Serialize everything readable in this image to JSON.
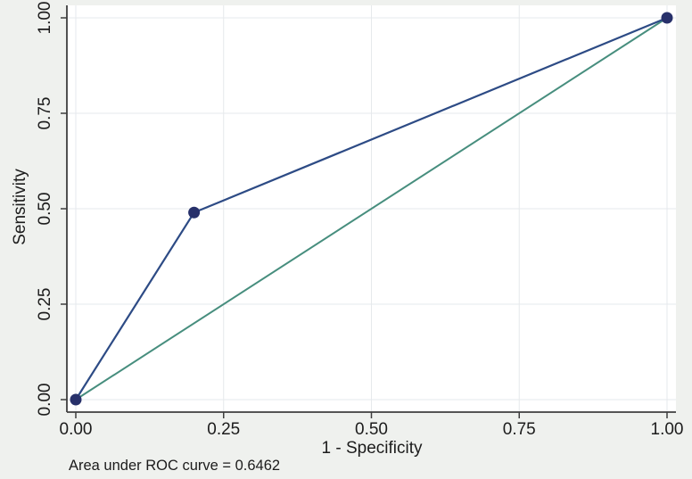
{
  "figure": {
    "background_color": "#eff1ee",
    "plot_background_color": "#ffffff",
    "axis_color": "#3e3e3e",
    "grid_color": "#e6e9ec",
    "text_color": "#1c1c1c"
  },
  "chart_data": {
    "type": "line",
    "subtype": "roc-curve",
    "title": "",
    "xlabel": "1 - Specificity",
    "ylabel": "Sensitivity",
    "xlim": [
      0,
      1
    ],
    "ylim": [
      0,
      1
    ],
    "grid": true,
    "legend_position": "none",
    "xticks": {
      "values": [
        0,
        0.25,
        0.5,
        0.75,
        1
      ],
      "labels": [
        "0.00",
        "0.25",
        "0.50",
        "0.75",
        "1.00"
      ]
    },
    "yticks": {
      "values": [
        0,
        0.25,
        0.5,
        0.75,
        1
      ],
      "labels": [
        "0.00",
        "0.25",
        "0.50",
        "0.75",
        "1.00"
      ]
    },
    "series": [
      {
        "name": "ROC curve",
        "color": "#2d4b85",
        "line_width": 2.2,
        "marker": {
          "shape": "circle",
          "color": "#27306a",
          "radius": 6.5
        },
        "points": [
          [
            0,
            0
          ],
          [
            0.2,
            0.49
          ],
          [
            1,
            1
          ]
        ]
      },
      {
        "name": "Reference diagonal (chance line)",
        "color": "#478e7e",
        "line_width": 2,
        "marker": null,
        "points": [
          [
            0,
            0
          ],
          [
            1,
            1
          ]
        ]
      }
    ],
    "annotation": "Area under ROC curve = 0.6462",
    "area_under_roc_curve": 0.6462
  }
}
